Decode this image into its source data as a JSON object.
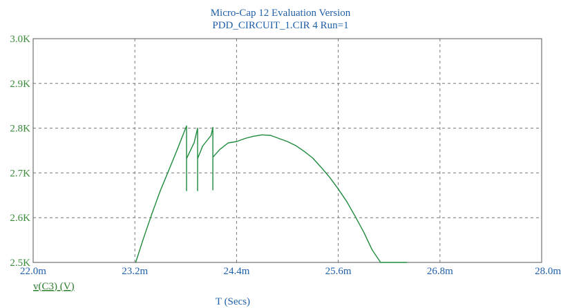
{
  "window": {
    "title": "Micro-Cap 12 Evaluation Version",
    "subtitle": "PDD_CIRCUIT_1.CIR 4 Run=1"
  },
  "colors": {
    "trace": "#1e8a3c",
    "ytick": "#3a8a3a",
    "xtick": "#1f5fa8",
    "grid": "#777777",
    "frame": "#555555"
  },
  "chart_data": {
    "type": "line",
    "title": "PDD_CIRCUIT_1.CIR 4 Run=1",
    "xlabel": "T (Secs)",
    "ylabel": "",
    "xlim": [
      0.022,
      0.028
    ],
    "ylim": [
      2500,
      3000
    ],
    "grid": true,
    "legend_position": "bottom-left",
    "x_tick_labels": [
      "22.0m",
      "23.2m",
      "24.4m",
      "25.6m",
      "26.8m",
      "28.0m"
    ],
    "x_tick_values": [
      0.022,
      0.0232,
      0.0244,
      0.0256,
      0.0268,
      0.028
    ],
    "y_tick_labels": [
      "2.5K",
      "2.6K",
      "2.7K",
      "2.8K",
      "2.9K",
      "3.0K"
    ],
    "y_tick_values": [
      2500,
      2600,
      2700,
      2800,
      2900,
      3000
    ],
    "series": [
      {
        "name": "v(C3) (V)",
        "x": [
          0.02321,
          0.0233,
          0.0234,
          0.0235,
          0.0236,
          0.0237,
          0.02381,
          0.02381,
          0.02381,
          0.02381,
          0.0239,
          0.02394,
          0.02394,
          0.02394,
          0.02394,
          0.024,
          0.0241,
          0.02412,
          0.02412,
          0.02412,
          0.02412,
          0.0242,
          0.0243,
          0.0244,
          0.0245,
          0.0246,
          0.0247,
          0.0248,
          0.0249,
          0.025,
          0.0251,
          0.0252,
          0.0253,
          0.0254,
          0.0255,
          0.0256,
          0.0257,
          0.0258,
          0.0259,
          0.026,
          0.0261,
          0.0262,
          0.0263,
          0.02641
        ],
        "y": [
          2500,
          2553,
          2608,
          2660,
          2706,
          2752,
          2805,
          2660,
          2732,
          2732,
          2768,
          2800,
          2660,
          2732,
          2732,
          2760,
          2784,
          2802,
          2662,
          2735,
          2735,
          2752,
          2767,
          2770,
          2777,
          2782,
          2785,
          2784,
          2777,
          2770,
          2761,
          2748,
          2733,
          2712,
          2690,
          2664,
          2636,
          2603,
          2568,
          2528,
          2500,
          2500,
          2500,
          2500
        ]
      }
    ]
  }
}
